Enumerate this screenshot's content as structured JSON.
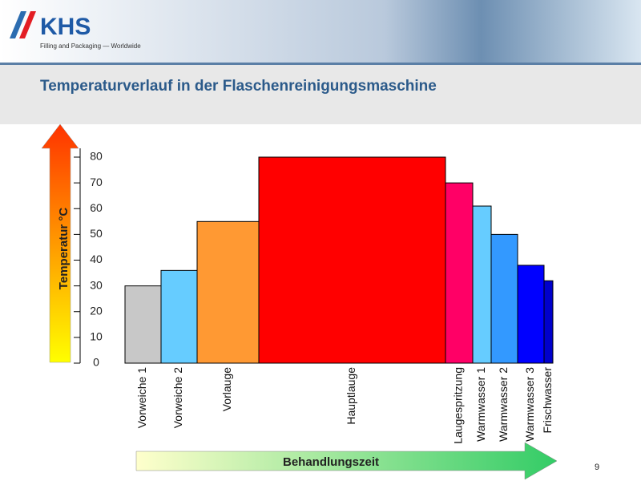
{
  "header": {
    "logo": "KHS",
    "tagline": "Filling and Packaging — Worldwide"
  },
  "page_number": "9",
  "chart_data": {
    "type": "bar",
    "title": "Temperaturverlauf in der Flaschenreinigungsmaschine",
    "y_label": "Temperatur °C",
    "x_label": "Behandlungszeit",
    "categories": [
      "Vorweiche 1",
      "Vorweiche 2",
      "Vorlauge",
      "Hauptlauge",
      "Laugespritzung",
      "Warmwasser 1",
      "Warmwasser 2",
      "Warmwasser 3",
      "Frischwasser"
    ],
    "values": [
      30,
      36,
      55,
      80,
      70,
      61,
      50,
      38,
      32
    ],
    "widths": [
      45,
      45,
      77,
      233,
      34,
      23,
      33,
      33,
      11
    ],
    "colors": [
      "#c8c8c8",
      "#66ccff",
      "#ff9933",
      "#ff0000",
      "#ff0066",
      "#66ccff",
      "#3399ff",
      "#0000ff",
      "#0000cc"
    ],
    "ylim": [
      0,
      80
    ],
    "yticks": [
      0,
      10,
      20,
      30,
      40,
      50,
      60,
      70,
      80
    ]
  }
}
